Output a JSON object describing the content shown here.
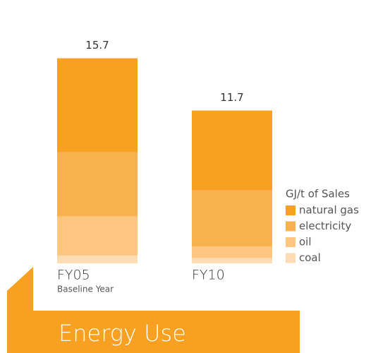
{
  "chart_data": {
    "type": "stacked_bar",
    "title": "Energy Use",
    "categories": [
      "FY05",
      "FY10"
    ],
    "category_notes": [
      "Baseline Year",
      null
    ],
    "totals": [
      15.7,
      11.7
    ],
    "legend_title": "GJ/t of Sales",
    "series": [
      {
        "name": "natural gas",
        "color": "#f7a021",
        "values": [
          7.2,
          6.1
        ]
      },
      {
        "name": "electricity",
        "color": "#f9b04f",
        "values": [
          4.9,
          4.3
        ]
      },
      {
        "name": "oil",
        "color": "#fcc580",
        "values": [
          3.0,
          0.9
        ]
      },
      {
        "name": "coal",
        "color": "#fddcb3",
        "values": [
          0.6,
          0.4
        ]
      }
    ]
  }
}
